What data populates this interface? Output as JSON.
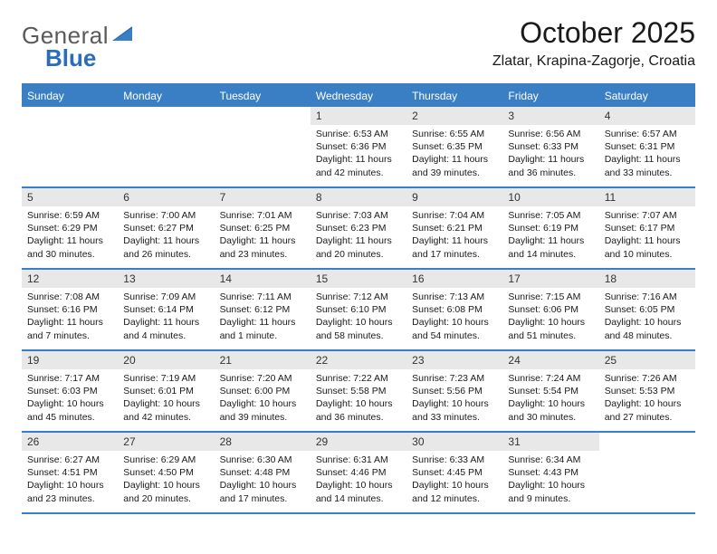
{
  "brand": {
    "text1": "General",
    "text2": "Blue"
  },
  "title": {
    "month": "October 2025",
    "location": "Zlatar, Krapina-Zagorje, Croatia"
  },
  "colors": {
    "accent": "#3a7fc4",
    "weekday_bg": "#3a7fc4",
    "weekday_text": "#ffffff",
    "daynum_bg": "#e8e8e8",
    "text": "#1a1a1a",
    "brand_blue": "#2a6db8",
    "brand_gray": "#5a5a5a"
  },
  "weekdays": [
    "Sunday",
    "Monday",
    "Tuesday",
    "Wednesday",
    "Thursday",
    "Friday",
    "Saturday"
  ],
  "weeks": [
    [
      {
        "day": "",
        "sunrise": "",
        "sunset": "",
        "daylight": ""
      },
      {
        "day": "",
        "sunrise": "",
        "sunset": "",
        "daylight": ""
      },
      {
        "day": "",
        "sunrise": "",
        "sunset": "",
        "daylight": ""
      },
      {
        "day": "1",
        "sunrise": "Sunrise: 6:53 AM",
        "sunset": "Sunset: 6:36 PM",
        "daylight": "Daylight: 11 hours and 42 minutes."
      },
      {
        "day": "2",
        "sunrise": "Sunrise: 6:55 AM",
        "sunset": "Sunset: 6:35 PM",
        "daylight": "Daylight: 11 hours and 39 minutes."
      },
      {
        "day": "3",
        "sunrise": "Sunrise: 6:56 AM",
        "sunset": "Sunset: 6:33 PM",
        "daylight": "Daylight: 11 hours and 36 minutes."
      },
      {
        "day": "4",
        "sunrise": "Sunrise: 6:57 AM",
        "sunset": "Sunset: 6:31 PM",
        "daylight": "Daylight: 11 hours and 33 minutes."
      }
    ],
    [
      {
        "day": "5",
        "sunrise": "Sunrise: 6:59 AM",
        "sunset": "Sunset: 6:29 PM",
        "daylight": "Daylight: 11 hours and 30 minutes."
      },
      {
        "day": "6",
        "sunrise": "Sunrise: 7:00 AM",
        "sunset": "Sunset: 6:27 PM",
        "daylight": "Daylight: 11 hours and 26 minutes."
      },
      {
        "day": "7",
        "sunrise": "Sunrise: 7:01 AM",
        "sunset": "Sunset: 6:25 PM",
        "daylight": "Daylight: 11 hours and 23 minutes."
      },
      {
        "day": "8",
        "sunrise": "Sunrise: 7:03 AM",
        "sunset": "Sunset: 6:23 PM",
        "daylight": "Daylight: 11 hours and 20 minutes."
      },
      {
        "day": "9",
        "sunrise": "Sunrise: 7:04 AM",
        "sunset": "Sunset: 6:21 PM",
        "daylight": "Daylight: 11 hours and 17 minutes."
      },
      {
        "day": "10",
        "sunrise": "Sunrise: 7:05 AM",
        "sunset": "Sunset: 6:19 PM",
        "daylight": "Daylight: 11 hours and 14 minutes."
      },
      {
        "day": "11",
        "sunrise": "Sunrise: 7:07 AM",
        "sunset": "Sunset: 6:17 PM",
        "daylight": "Daylight: 11 hours and 10 minutes."
      }
    ],
    [
      {
        "day": "12",
        "sunrise": "Sunrise: 7:08 AM",
        "sunset": "Sunset: 6:16 PM",
        "daylight": "Daylight: 11 hours and 7 minutes."
      },
      {
        "day": "13",
        "sunrise": "Sunrise: 7:09 AM",
        "sunset": "Sunset: 6:14 PM",
        "daylight": "Daylight: 11 hours and 4 minutes."
      },
      {
        "day": "14",
        "sunrise": "Sunrise: 7:11 AM",
        "sunset": "Sunset: 6:12 PM",
        "daylight": "Daylight: 11 hours and 1 minute."
      },
      {
        "day": "15",
        "sunrise": "Sunrise: 7:12 AM",
        "sunset": "Sunset: 6:10 PM",
        "daylight": "Daylight: 10 hours and 58 minutes."
      },
      {
        "day": "16",
        "sunrise": "Sunrise: 7:13 AM",
        "sunset": "Sunset: 6:08 PM",
        "daylight": "Daylight: 10 hours and 54 minutes."
      },
      {
        "day": "17",
        "sunrise": "Sunrise: 7:15 AM",
        "sunset": "Sunset: 6:06 PM",
        "daylight": "Daylight: 10 hours and 51 minutes."
      },
      {
        "day": "18",
        "sunrise": "Sunrise: 7:16 AM",
        "sunset": "Sunset: 6:05 PM",
        "daylight": "Daylight: 10 hours and 48 minutes."
      }
    ],
    [
      {
        "day": "19",
        "sunrise": "Sunrise: 7:17 AM",
        "sunset": "Sunset: 6:03 PM",
        "daylight": "Daylight: 10 hours and 45 minutes."
      },
      {
        "day": "20",
        "sunrise": "Sunrise: 7:19 AM",
        "sunset": "Sunset: 6:01 PM",
        "daylight": "Daylight: 10 hours and 42 minutes."
      },
      {
        "day": "21",
        "sunrise": "Sunrise: 7:20 AM",
        "sunset": "Sunset: 6:00 PM",
        "daylight": "Daylight: 10 hours and 39 minutes."
      },
      {
        "day": "22",
        "sunrise": "Sunrise: 7:22 AM",
        "sunset": "Sunset: 5:58 PM",
        "daylight": "Daylight: 10 hours and 36 minutes."
      },
      {
        "day": "23",
        "sunrise": "Sunrise: 7:23 AM",
        "sunset": "Sunset: 5:56 PM",
        "daylight": "Daylight: 10 hours and 33 minutes."
      },
      {
        "day": "24",
        "sunrise": "Sunrise: 7:24 AM",
        "sunset": "Sunset: 5:54 PM",
        "daylight": "Daylight: 10 hours and 30 minutes."
      },
      {
        "day": "25",
        "sunrise": "Sunrise: 7:26 AM",
        "sunset": "Sunset: 5:53 PM",
        "daylight": "Daylight: 10 hours and 27 minutes."
      }
    ],
    [
      {
        "day": "26",
        "sunrise": "Sunrise: 6:27 AM",
        "sunset": "Sunset: 4:51 PM",
        "daylight": "Daylight: 10 hours and 23 minutes."
      },
      {
        "day": "27",
        "sunrise": "Sunrise: 6:29 AM",
        "sunset": "Sunset: 4:50 PM",
        "daylight": "Daylight: 10 hours and 20 minutes."
      },
      {
        "day": "28",
        "sunrise": "Sunrise: 6:30 AM",
        "sunset": "Sunset: 4:48 PM",
        "daylight": "Daylight: 10 hours and 17 minutes."
      },
      {
        "day": "29",
        "sunrise": "Sunrise: 6:31 AM",
        "sunset": "Sunset: 4:46 PM",
        "daylight": "Daylight: 10 hours and 14 minutes."
      },
      {
        "day": "30",
        "sunrise": "Sunrise: 6:33 AM",
        "sunset": "Sunset: 4:45 PM",
        "daylight": "Daylight: 10 hours and 12 minutes."
      },
      {
        "day": "31",
        "sunrise": "Sunrise: 6:34 AM",
        "sunset": "Sunset: 4:43 PM",
        "daylight": "Daylight: 10 hours and 9 minutes."
      },
      {
        "day": "",
        "sunrise": "",
        "sunset": "",
        "daylight": ""
      }
    ]
  ]
}
